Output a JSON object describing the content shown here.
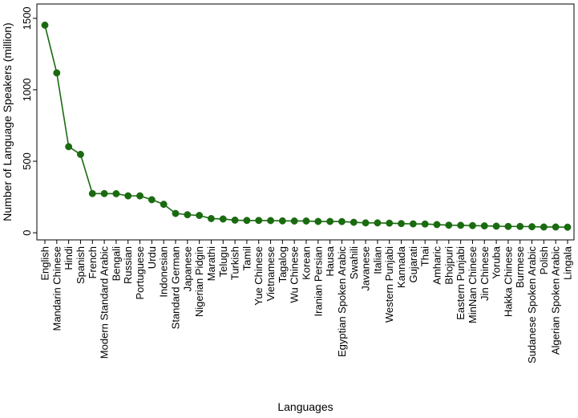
{
  "chart_data": {
    "type": "line",
    "title": "",
    "xlabel": "Languages",
    "ylabel": "Number of Language Speakers (million)",
    "ylim": [
      -50,
      1600
    ],
    "yticks": [
      0,
      500,
      1000,
      1500
    ],
    "grid": false,
    "legend": "none",
    "series_color": "#1a6b10",
    "categories": [
      "English",
      "Mandarin Chinese",
      "Hindi",
      "Spanish",
      "French",
      "Modern Standard Arabic",
      "Bengali",
      "Russian",
      "Portuguese",
      "Urdu",
      "Indonesian",
      "Standard German",
      "Japanese",
      "Nigerian Pidgin",
      "Marathi",
      "Telugu",
      "Turkish",
      "Tamil",
      "Yue Chinese",
      "Vietnamese",
      "Tagalog",
      "Wu Chinese",
      "Korean",
      "Iranian Persian",
      "Hausa",
      "Egyptian Spoken Arabic",
      "Swahili",
      "Javanese",
      "Italian",
      "Western Punjabi",
      "Kannada",
      "Gujarati",
      "Thai",
      "Amharic",
      "Bhojpuri",
      "Eastern Punjabi",
      "MinNan Chinese",
      "Jin Chinese",
      "Yoruba",
      "Hakka Chinese",
      "Burmese",
      "Sudanese Spoken Arabic",
      "Polish",
      "Algerian Spoken Arabic",
      "Lingala"
    ],
    "series": [
      {
        "values": [
          1452,
          1118,
          602,
          548,
          274,
          274,
          273,
          258,
          258,
          231,
          199,
          135,
          126,
          121,
          99,
          96,
          88,
          86,
          86,
          85,
          83,
          82,
          82,
          79,
          79,
          78,
          73,
          69,
          69,
          67,
          64,
          62,
          61,
          57,
          53,
          52,
          50,
          48,
          46,
          44,
          44,
          42,
          40,
          40,
          39
        ]
      }
    ]
  }
}
